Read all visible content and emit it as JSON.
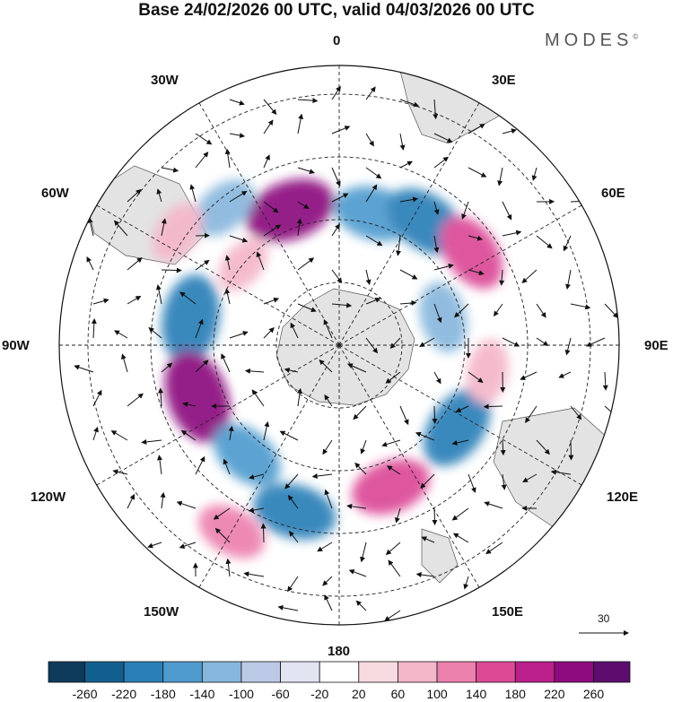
{
  "title": "Base 24/02/2026 00 UTC, valid 04/03/2026 00 UTC",
  "brand": "MODES",
  "brand_mark": "©",
  "longitude_labels": {
    "top": "0",
    "top_left": "30W",
    "top_right": "30E",
    "upper_left": "60W",
    "upper_right": "60E",
    "left": "90W",
    "right": "90E",
    "lower_left": "120W",
    "lower_right": "120E",
    "bottom_left": "150W",
    "bottom_right": "150E",
    "bottom": "180"
  },
  "vector_scale_label": "30",
  "colorbar": {
    "ticks": [
      "-260",
      "-220",
      "-180",
      "-140",
      "-100",
      "-60",
      "-20",
      "20",
      "60",
      "100",
      "140",
      "180",
      "220",
      "260"
    ],
    "colors": [
      "#0e3a5c",
      "#115f8f",
      "#2b7fb8",
      "#4f9bcf",
      "#88b7dd",
      "#bcc9e6",
      "#e2e4f2",
      "#ffffff",
      "#f8dbe0",
      "#f4b6c9",
      "#ec80ad",
      "#dc4a96",
      "#bb1f8b",
      "#8d0a7f",
      "#5c0d6e"
    ]
  },
  "anomaly_cells": [
    {
      "lon": 15,
      "lat": -52,
      "value": -180
    },
    {
      "lon": 35,
      "lat": -48,
      "value": -200
    },
    {
      "lon": -20,
      "lat": -50,
      "value": 230
    },
    {
      "lon": 55,
      "lat": -45,
      "value": 170
    },
    {
      "lon": -40,
      "lat": -40,
      "value": -110
    },
    {
      "lon": -55,
      "lat": -35,
      "value": 80
    },
    {
      "lon": -80,
      "lat": -48,
      "value": -220
    },
    {
      "lon": -110,
      "lat": -48,
      "value": 250
    },
    {
      "lon": -140,
      "lat": -50,
      "value": -150
    },
    {
      "lon": -165,
      "lat": -42,
      "value": -190
    },
    {
      "lon": 160,
      "lat": -48,
      "value": 170
    },
    {
      "lon": 125,
      "lat": -50,
      "value": -200
    },
    {
      "lon": 100,
      "lat": -48,
      "value": 80
    },
    {
      "lon": 75,
      "lat": -60,
      "value": -120
    },
    {
      "lon": -150,
      "lat": -30,
      "value": 120
    },
    {
      "lon": -50,
      "lat": -55,
      "value": 60
    }
  ]
}
